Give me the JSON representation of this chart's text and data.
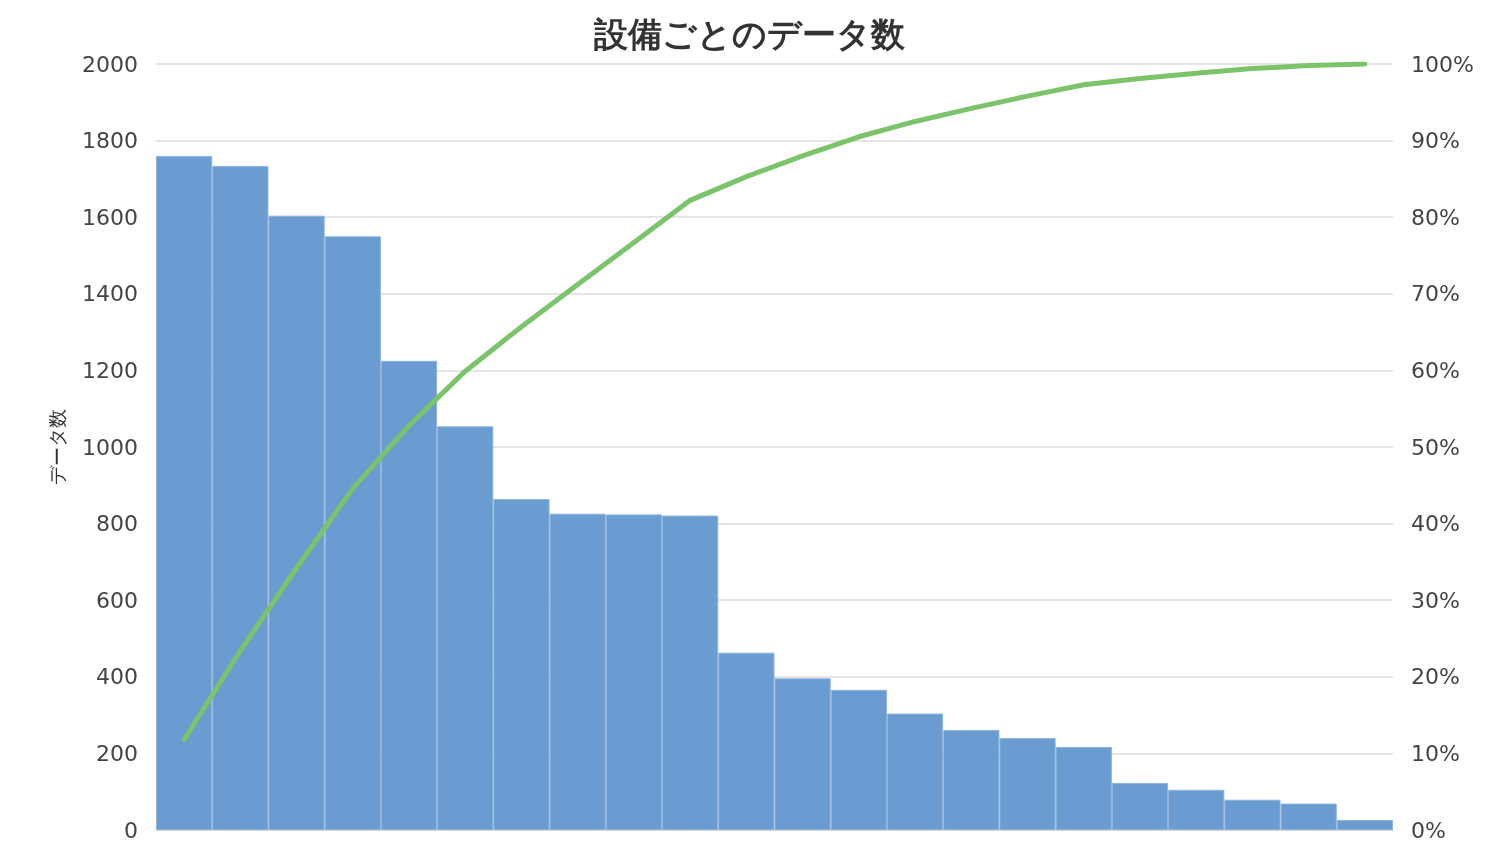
{
  "chart_data": {
    "type": "bar",
    "title": "設備ごとのデータ数",
    "ylabel": "データ数",
    "categories": [
      null,
      null,
      null,
      null,
      null,
      null,
      null,
      null,
      null,
      null,
      null,
      null,
      null,
      null,
      null,
      null,
      null,
      null,
      null,
      null,
      null,
      null
    ],
    "series": [
      {
        "color": "#6a9bd1",
        "values": [
          1760,
          1734,
          1604,
          1550,
          1225,
          1054,
          864,
          826,
          824,
          821,
          463,
          396,
          366,
          304,
          261,
          240,
          217,
          123,
          105,
          79,
          69,
          26
        ]
      },
      {
        "type": "line",
        "axis": "y2",
        "color": "#7dc36b",
        "marker": "none",
        "values": [
          11.8,
          23.4,
          34.2,
          44.6,
          52.8,
          59.9,
          65.7,
          71.2,
          76.7,
          82.2,
          85.3,
          88.0,
          90.5,
          92.5,
          94.2,
          95.8,
          97.3,
          98.1,
          98.8,
          99.4,
          99.8,
          100
        ]
      }
    ],
    "ylim": [
      0,
      2000
    ],
    "yticks": [
      0,
      200,
      400,
      600,
      800,
      1000,
      1200,
      1400,
      1600,
      1800,
      2000
    ],
    "y2lim": [
      0,
      100
    ],
    "y2ticks": [
      {
        "value": 0,
        "label": "0%"
      },
      {
        "value": 10,
        "label": "10%"
      },
      {
        "value": 20,
        "label": "20%"
      },
      {
        "value": 30,
        "label": "30%"
      },
      {
        "value": 40,
        "label": "40%"
      },
      {
        "value": 50,
        "label": "50%"
      },
      {
        "value": 60,
        "label": "60%"
      },
      {
        "value": 70,
        "label": "70%"
      },
      {
        "value": 80,
        "label": "80%"
      },
      {
        "value": 90,
        "label": "90%"
      },
      {
        "value": 100,
        "label": "100%"
      }
    ],
    "grid": "y"
  }
}
